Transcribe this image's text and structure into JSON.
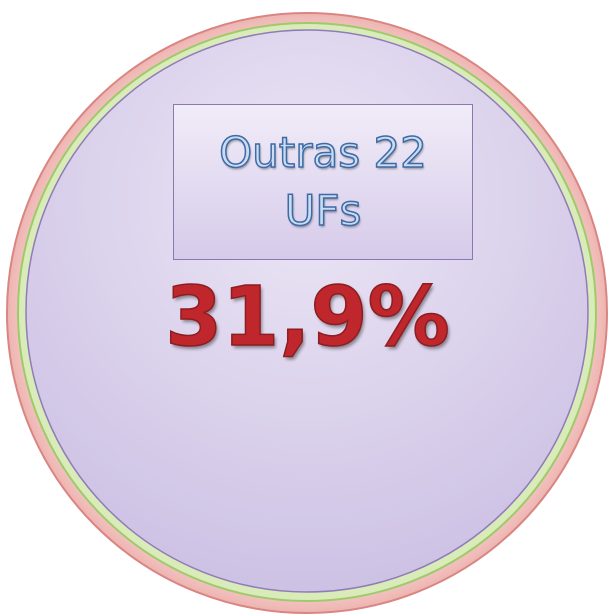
{
  "label": "Outras 22 UFs",
  "value": "31,9%"
}
